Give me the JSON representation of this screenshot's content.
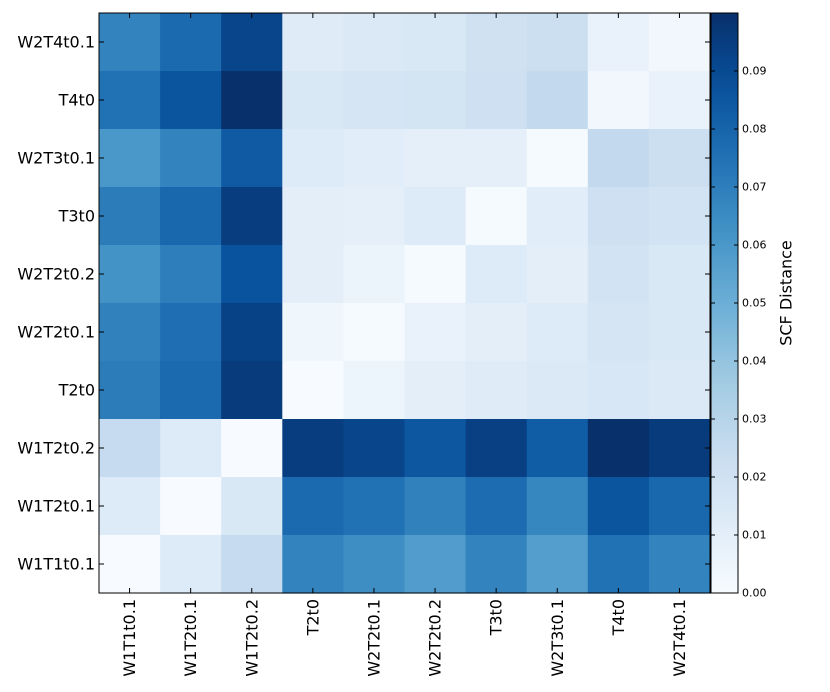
{
  "chart_data": {
    "type": "heatmap",
    "title": "",
    "xlabel": "",
    "ylabel": "",
    "x_categories": [
      "W1T1t0.1",
      "W1T2t0.1",
      "W1T2t0.2",
      "T2t0",
      "W2T2t0.1",
      "W2T2t0.2",
      "T3t0",
      "W2T3t0.1",
      "T4t0",
      "W2T4t0.1"
    ],
    "y_categories": [
      "W2T4t0.1",
      "T4t0",
      "W2T3t0.1",
      "T3t0",
      "W2T2t0.2",
      "W2T2t0.1",
      "T2t0",
      "W1T2t0.2",
      "W1T2t0.1",
      "W1T1t0.1"
    ],
    "values": [
      [
        0.068,
        0.078,
        0.092,
        0.012,
        0.014,
        0.015,
        0.02,
        0.022,
        0.007,
        0.003
      ],
      [
        0.075,
        0.086,
        0.1,
        0.015,
        0.017,
        0.018,
        0.021,
        0.026,
        0.003,
        0.007
      ],
      [
        0.06,
        0.068,
        0.084,
        0.013,
        0.011,
        0.009,
        0.009,
        0.001,
        0.026,
        0.022
      ],
      [
        0.071,
        0.079,
        0.095,
        0.01,
        0.009,
        0.013,
        0.001,
        0.011,
        0.021,
        0.019
      ],
      [
        0.062,
        0.07,
        0.087,
        0.01,
        0.006,
        0.001,
        0.013,
        0.01,
        0.019,
        0.015
      ],
      [
        0.069,
        0.076,
        0.093,
        0.004,
        0.001,
        0.007,
        0.01,
        0.013,
        0.017,
        0.015
      ],
      [
        0.071,
        0.078,
        0.096,
        0.0,
        0.005,
        0.01,
        0.012,
        0.014,
        0.016,
        0.014
      ],
      [
        0.025,
        0.013,
        0.0,
        0.095,
        0.092,
        0.085,
        0.094,
        0.083,
        0.1,
        0.096
      ],
      [
        0.013,
        0.0,
        0.015,
        0.078,
        0.075,
        0.069,
        0.077,
        0.067,
        0.086,
        0.079
      ],
      [
        0.0,
        0.013,
        0.025,
        0.068,
        0.064,
        0.058,
        0.068,
        0.057,
        0.075,
        0.068
      ]
    ],
    "colormap": "Blues",
    "vmin": 0.0,
    "vmax": 0.1,
    "colorbar": {
      "label": "SCF Distance",
      "ticks": [
        "0.00",
        "0.01",
        "0.02",
        "0.03",
        "0.04",
        "0.05",
        "0.06",
        "0.07",
        "0.08",
        "0.09"
      ],
      "tick_values": [
        0.0,
        0.01,
        0.02,
        0.03,
        0.04,
        0.05,
        0.06,
        0.07,
        0.08,
        0.09
      ]
    },
    "grid": false
  }
}
